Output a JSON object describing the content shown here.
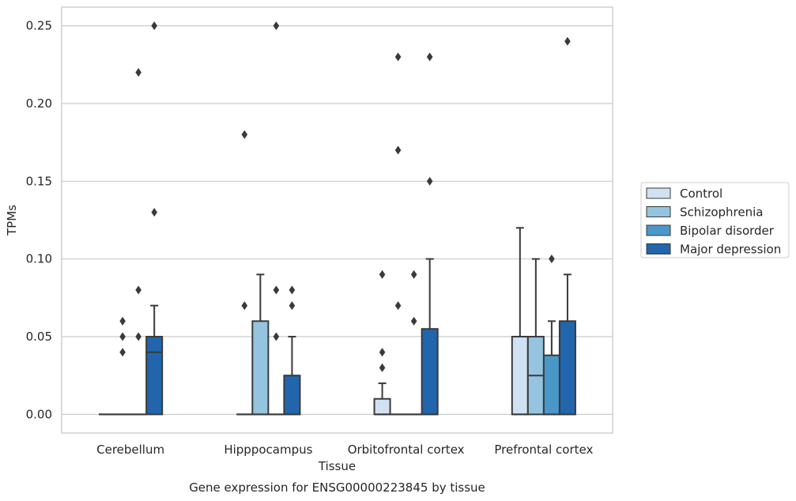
{
  "chart_data": {
    "type": "box",
    "xlabel": "Tissue",
    "ylabel": "TPMs",
    "caption": "Gene expression for ENSG00000223845 by tissue",
    "ylim": [
      -0.012,
      0.262
    ],
    "yticks": [
      "0.00",
      "0.05",
      "0.10",
      "0.15",
      "0.20",
      "0.25"
    ],
    "ytick_values": [
      0,
      0.05,
      0.1,
      0.15,
      0.2,
      0.25
    ],
    "grid": "horizontal",
    "legend_position": "right",
    "categories": [
      "Cerebellum",
      "Hipppocampus",
      "Orbitofrontal cortex",
      "Prefrontal cortex"
    ],
    "series": [
      {
        "name": "Control",
        "color": "#d0e1f2",
        "boxes": [
          {
            "q1": 0,
            "median": 0,
            "q3": 0,
            "whisker_low": 0,
            "whisker_high": 0,
            "outliers": []
          },
          {
            "q1": 0,
            "median": 0,
            "q3": 0,
            "whisker_low": 0,
            "whisker_high": 0,
            "outliers": [
              0.07,
              0.18
            ]
          },
          {
            "q1": 0,
            "median": 0,
            "q3": 0.01,
            "whisker_low": 0,
            "whisker_high": 0.02,
            "outliers": [
              0.03,
              0.04,
              0.09
            ]
          },
          {
            "q1": 0,
            "median": 0,
            "q3": 0.05,
            "whisker_low": 0,
            "whisker_high": 0.12,
            "outliers": []
          }
        ]
      },
      {
        "name": "Schizophrenia",
        "color": "#94c4df",
        "boxes": [
          {
            "q1": 0,
            "median": 0,
            "q3": 0,
            "whisker_low": 0,
            "whisker_high": 0,
            "outliers": [
              0.04,
              0.05,
              0.06
            ]
          },
          {
            "q1": 0,
            "median": 0,
            "q3": 0.06,
            "whisker_low": 0,
            "whisker_high": 0.09,
            "outliers": []
          },
          {
            "q1": 0,
            "median": 0,
            "q3": 0,
            "whisker_low": 0,
            "whisker_high": 0,
            "outliers": [
              0.07,
              0.17,
              0.23
            ]
          },
          {
            "q1": 0,
            "median": 0.025,
            "q3": 0.05,
            "whisker_low": 0,
            "whisker_high": 0.1,
            "outliers": []
          }
        ]
      },
      {
        "name": "Bipolar disorder",
        "color": "#4a98c9",
        "boxes": [
          {
            "q1": 0,
            "median": 0,
            "q3": 0,
            "whisker_low": 0,
            "whisker_high": 0,
            "outliers": [
              0.05,
              0.08,
              0.22
            ]
          },
          {
            "q1": 0,
            "median": 0,
            "q3": 0,
            "whisker_low": 0,
            "whisker_high": 0,
            "outliers": [
              0.05,
              0.08,
              0.25
            ]
          },
          {
            "q1": 0,
            "median": 0,
            "q3": 0,
            "whisker_low": 0,
            "whisker_high": 0,
            "outliers": [
              0.06,
              0.09
            ]
          },
          {
            "q1": 0,
            "median": 0,
            "q3": 0.038,
            "whisker_low": 0,
            "whisker_high": 0.06,
            "outliers": [
              0.1
            ]
          }
        ]
      },
      {
        "name": "Major depression",
        "color": "#2166ac",
        "boxes": [
          {
            "q1": 0,
            "median": 0.04,
            "q3": 0.05,
            "whisker_low": 0,
            "whisker_high": 0.07,
            "outliers": [
              0.13,
              0.25
            ]
          },
          {
            "q1": 0,
            "median": 0,
            "q3": 0.025,
            "whisker_low": 0,
            "whisker_high": 0.05,
            "outliers": [
              0.07,
              0.08
            ]
          },
          {
            "q1": 0,
            "median": 0,
            "q3": 0.055,
            "whisker_low": 0,
            "whisker_high": 0.1,
            "outliers": [
              0.15,
              0.23
            ]
          },
          {
            "q1": 0,
            "median": 0,
            "q3": 0.06,
            "whisker_low": 0,
            "whisker_high": 0.09,
            "outliers": [
              0.24
            ]
          }
        ]
      }
    ]
  }
}
